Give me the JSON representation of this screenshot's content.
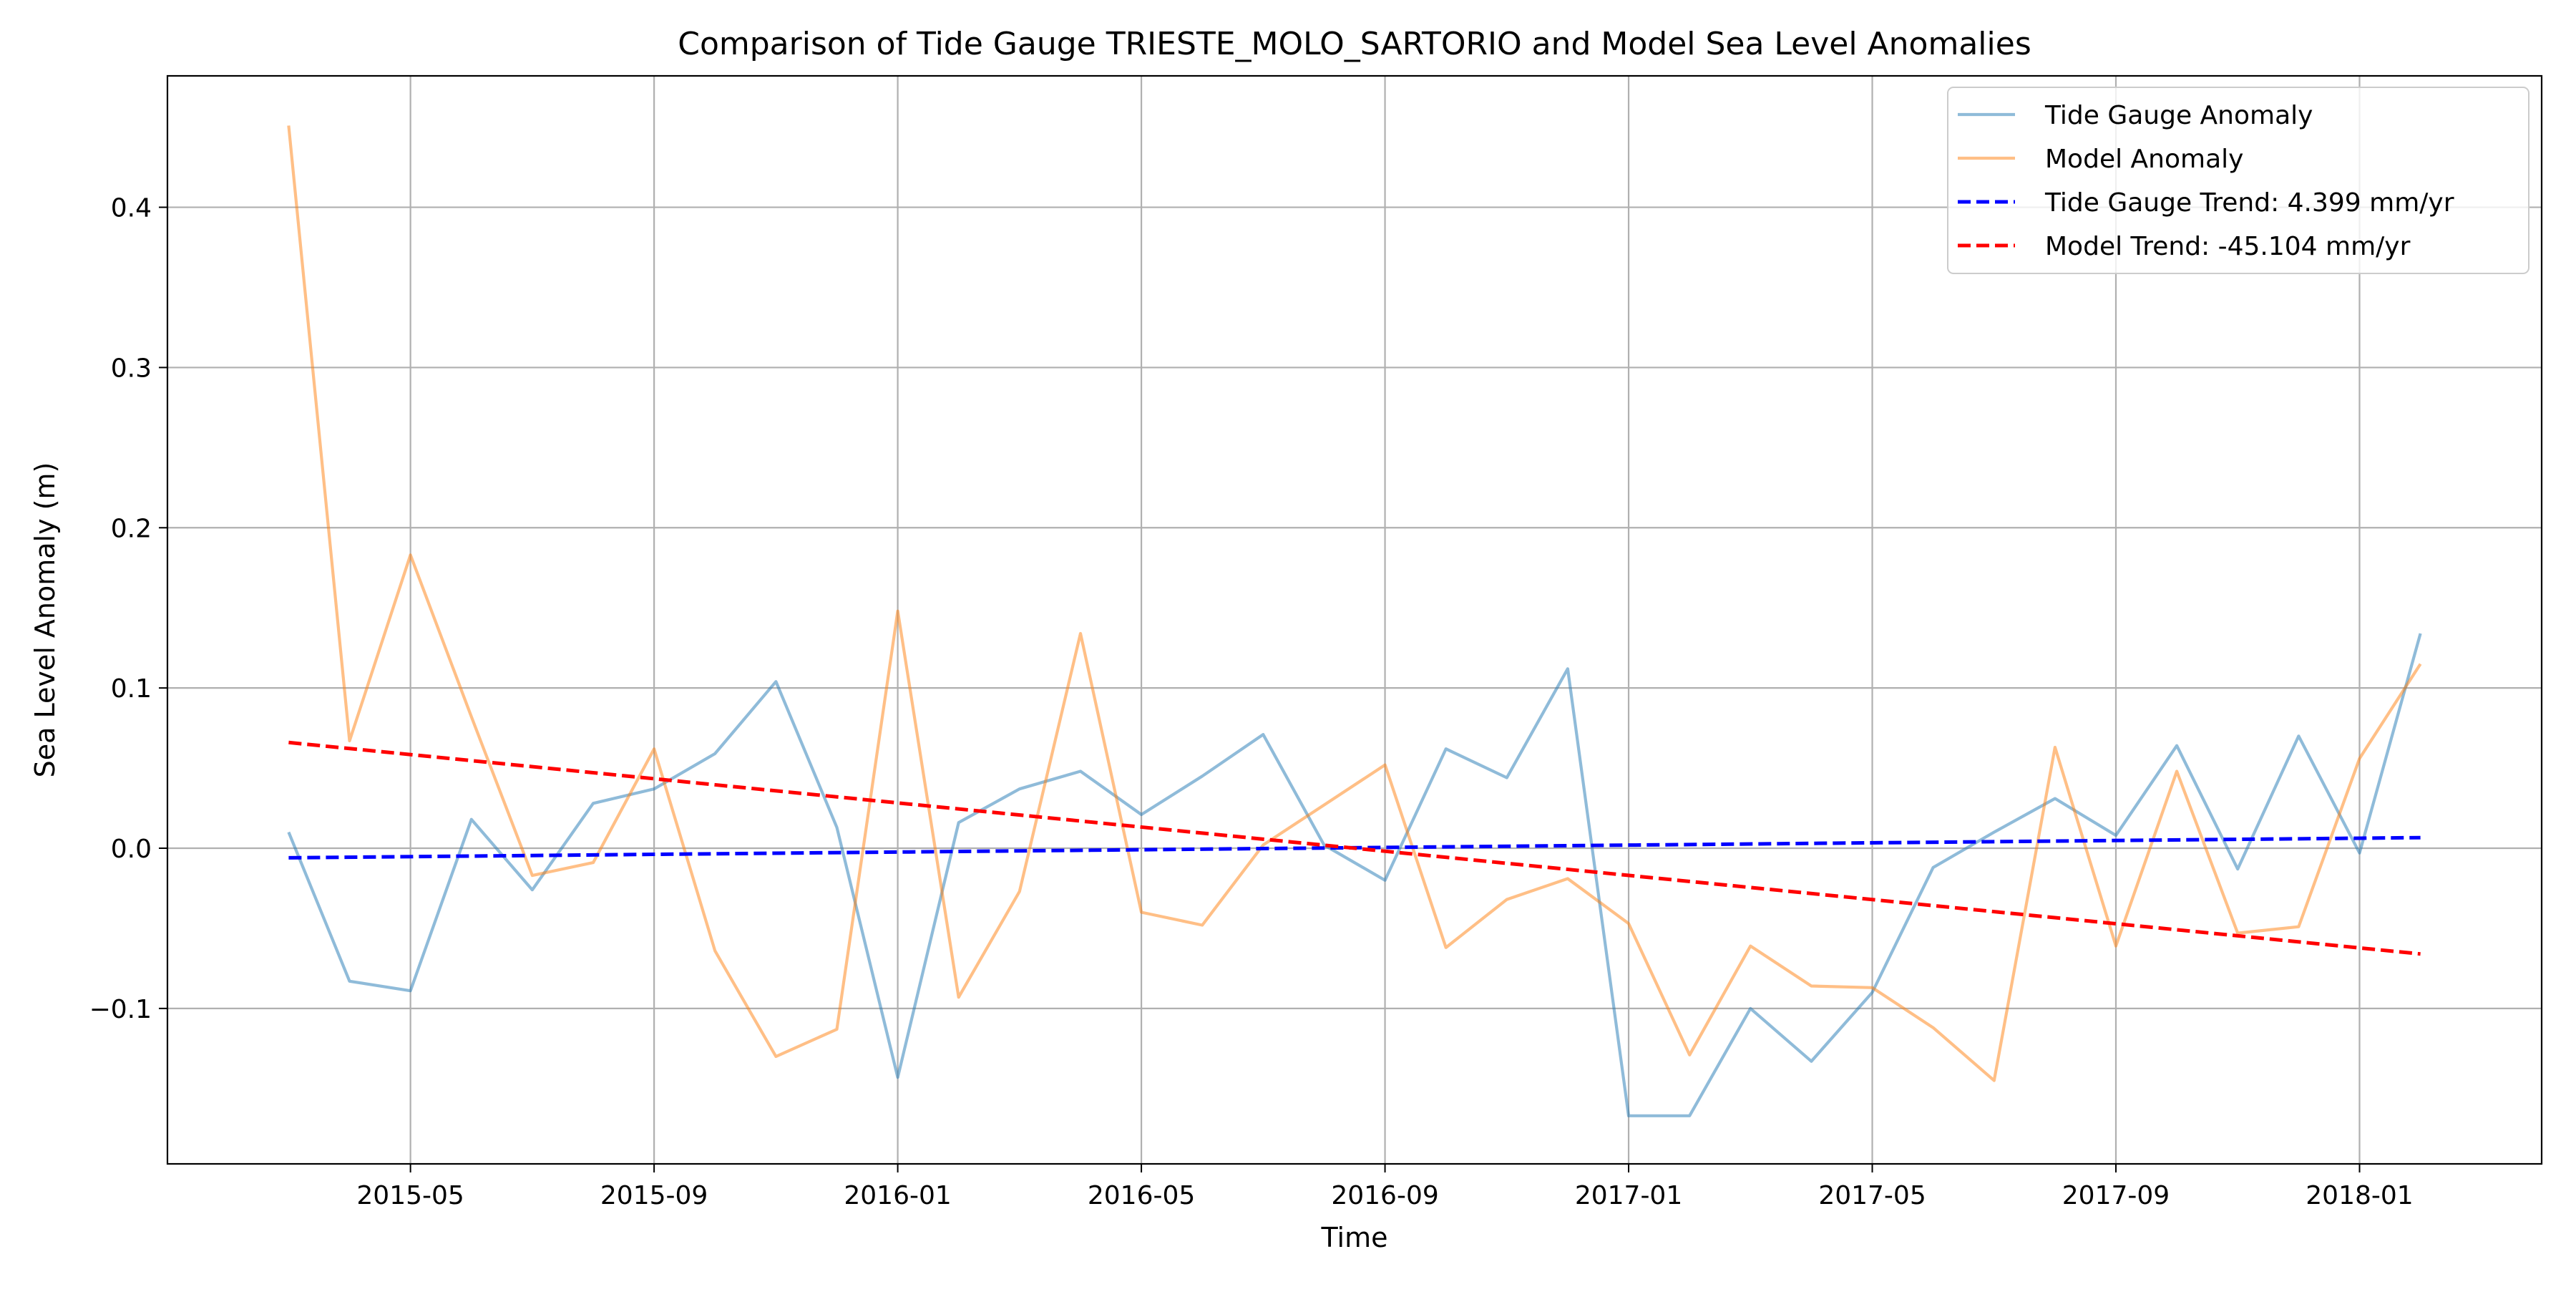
{
  "chart_data": {
    "type": "line",
    "title": "Comparison of Tide Gauge TRIESTE_MOLO_SARTORIO and Model Sea Level Anomalies",
    "xlabel": "Time",
    "ylabel": "Sea Level Anomaly (m)",
    "grid": true,
    "legend_position": "top-right",
    "x_months_start": "2015-03",
    "x_tick_labels": [
      "2015-05",
      "2015-09",
      "2016-01",
      "2016-05",
      "2016-09",
      "2017-01",
      "2017-05",
      "2017-09",
      "2018-01"
    ],
    "x_tick_month_index": [
      2,
      6,
      10,
      14,
      18,
      22,
      26,
      30,
      34
    ],
    "xlim": [
      -1.99,
      36.99
    ],
    "y_ticks": [
      -0.1,
      0.0,
      0.1,
      0.2,
      0.3,
      0.4
    ],
    "y_tick_labels": [
      "−0.1",
      "0.0",
      "0.1",
      "0.2",
      "0.3",
      "0.4"
    ],
    "ylim": [
      -0.197,
      0.482
    ],
    "series": [
      {
        "name": "Tide Gauge Anomaly",
        "color": "#1f77b4",
        "opacity": 0.5,
        "dashed": false,
        "values": [
          0.01,
          -0.083,
          -0.089,
          0.018,
          -0.026,
          0.028,
          0.037,
          0.059,
          0.104,
          0.013,
          -0.143,
          0.016,
          0.037,
          0.048,
          0.021,
          0.045,
          0.071,
          0.002,
          -0.02,
          0.062,
          0.044,
          0.112,
          -0.167,
          -0.167,
          -0.1,
          -0.133,
          -0.09,
          -0.012,
          0.01,
          0.031,
          0.008,
          0.064,
          -0.013,
          0.07,
          -0.003,
          0.134
        ]
      },
      {
        "name": "Model Anomaly",
        "color": "#ff7f0e",
        "opacity": 0.5,
        "dashed": false,
        "values": [
          0.451,
          0.067,
          0.183,
          0.082,
          -0.017,
          -0.009,
          0.062,
          -0.064,
          -0.13,
          -0.113,
          0.148,
          -0.093,
          -0.027,
          0.134,
          -0.04,
          -0.048,
          0.002,
          0.027,
          0.052,
          -0.062,
          -0.032,
          -0.019,
          -0.047,
          -0.129,
          -0.061,
          -0.086,
          -0.087,
          -0.112,
          -0.145,
          0.063,
          -0.061,
          0.048,
          -0.053,
          -0.049,
          0.056,
          0.115
        ]
      },
      {
        "name": "Tide Gauge Trend: 4.399 mm/yr",
        "color": "#0000ff",
        "opacity": 1,
        "dashed": true,
        "values": [
          -0.006,
          0.0066
        ]
      },
      {
        "name": "Model Trend: -45.104 mm/yr",
        "color": "#ff0000",
        "opacity": 1,
        "dashed": true,
        "values": [
          0.066,
          -0.066
        ]
      }
    ]
  }
}
